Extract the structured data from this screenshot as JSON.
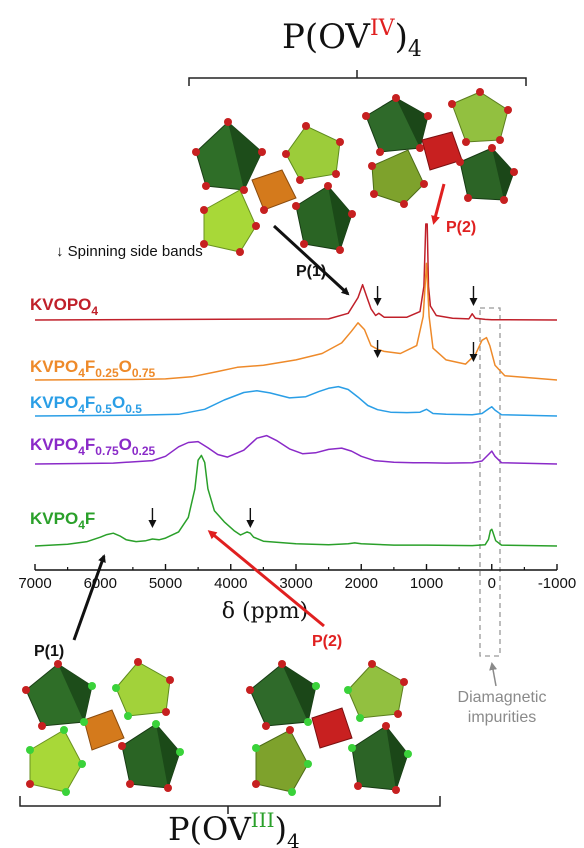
{
  "chart_data": {
    "type": "line",
    "xlabel": "δ (ppm)",
    "xlim": [
      7000,
      -1000
    ],
    "xticks": [
      7000,
      6000,
      5000,
      4000,
      3000,
      2000,
      1000,
      0,
      -1000
    ],
    "series": [
      {
        "name": "KVOPO4",
        "color": "#c0202a",
        "x": [
          7000,
          2500,
          2200,
          2050,
          1980,
          1900,
          1850,
          1780,
          1730,
          1650,
          1300,
          1100,
          1040,
          1010,
          990,
          970,
          940,
          850,
          600,
          350,
          300,
          250,
          100,
          0,
          -1000
        ],
        "y": [
          0,
          0.2,
          1.2,
          4.0,
          6.3,
          3.6,
          2.0,
          0.8,
          1.2,
          0.5,
          0.5,
          1.5,
          6,
          60,
          60,
          6,
          2.5,
          0.8,
          0.3,
          0.2,
          1.1,
          0.3,
          0.1,
          0.05,
          0
        ]
      },
      {
        "name": "KVPO4F0.25O0.75",
        "color": "#ee8a2a",
        "x": [
          7000,
          5500,
          5000,
          4600,
          4200,
          3900,
          3500,
          3000,
          2600,
          2300,
          2150,
          2050,
          1950,
          1850,
          1750,
          1650,
          1400,
          1150,
          1050,
          1000,
          960,
          900,
          700,
          400,
          250,
          150,
          80,
          30,
          -50,
          -200,
          -1000
        ],
        "y": [
          0,
          0.1,
          0.2,
          0.6,
          1.6,
          2.4,
          2.8,
          3.8,
          5.0,
          7.0,
          9.2,
          10.8,
          9.5,
          6.5,
          5.8,
          5.4,
          5.0,
          6.5,
          12,
          22,
          12,
          6,
          3.8,
          3.0,
          4.8,
          7.5,
          8.0,
          6.5,
          2.8,
          0.8,
          0
        ]
      },
      {
        "name": "KVPO4F0.5O0.5",
        "color": "#2a9ee6",
        "x": [
          7000,
          5500,
          4800,
          4400,
          4100,
          3800,
          3600,
          3400,
          3100,
          2850,
          2650,
          2500,
          2350,
          2200,
          2050,
          1900,
          1750,
          1550,
          1300,
          1100,
          1000,
          900,
          700,
          300,
          150,
          50,
          0,
          -50,
          -150,
          -1000
        ],
        "y": [
          0,
          0.2,
          0.4,
          1.6,
          3.8,
          5.6,
          6.0,
          5.5,
          4.3,
          4.6,
          5.8,
          6.6,
          7.0,
          6.3,
          4.5,
          2.5,
          1.5,
          0.9,
          0.8,
          0.9,
          1.6,
          0.6,
          0.4,
          0.3,
          0.6,
          1.7,
          2.2,
          1.4,
          0.3,
          0
        ]
      },
      {
        "name": "KVPO4F0.75O0.25",
        "color": "#8a2ac8",
        "x": [
          7000,
          5800,
          5200,
          5000,
          4800,
          4650,
          4500,
          4350,
          4200,
          4050,
          3800,
          3600,
          3450,
          3300,
          3100,
          2900,
          2700,
          2500,
          2300,
          2150,
          2000,
          1800,
          1500,
          1200,
          1000,
          700,
          300,
          150,
          50,
          0,
          -50,
          -150,
          -1000
        ],
        "y": [
          0,
          0.2,
          0.8,
          1.8,
          4.0,
          5.0,
          5.2,
          3.8,
          2.2,
          1.6,
          3.2,
          6.0,
          6.6,
          5.5,
          3.5,
          2.4,
          2.6,
          3.4,
          3.7,
          3.0,
          1.8,
          0.8,
          0.4,
          0.3,
          0.3,
          0.2,
          0.3,
          0.7,
          2.2,
          3.0,
          1.8,
          0.3,
          0
        ]
      },
      {
        "name": "KVPO4F",
        "color": "#2aa02a",
        "x": [
          7000,
          6500,
          6200,
          6000,
          5900,
          5800,
          5700,
          5600,
          5450,
          5300,
          5200,
          5100,
          5000,
          4800,
          4650,
          4550,
          4500,
          4450,
          4400,
          4350,
          4250,
          4100,
          3950,
          3850,
          3750,
          3700,
          3650,
          3500,
          3000,
          2500,
          2200,
          2100,
          2000,
          1500,
          1000,
          300,
          100,
          50,
          20,
          0,
          -20,
          -60,
          -150,
          -1000
        ],
        "y": [
          0,
          0.4,
          1.0,
          2.0,
          2.6,
          2.9,
          2.3,
          1.4,
          1.0,
          1.2,
          1.6,
          1.4,
          1.8,
          3.2,
          6.5,
          13,
          19.5,
          20.6,
          19,
          13,
          8,
          5.5,
          3.5,
          2.5,
          3.2,
          2.9,
          2.0,
          1.1,
          0.5,
          0.3,
          0.5,
          0.7,
          0.5,
          0.2,
          0.2,
          0.1,
          0.3,
          1.5,
          3.5,
          3.8,
          3.0,
          1.2,
          0.2,
          0
        ]
      }
    ],
    "annotations": {
      "top_formula": {
        "base": "P(OV",
        "roman": "IV",
        "sub": "4"
      },
      "bottom_formula": {
        "base": "P(OV",
        "roman": "III",
        "sub": "4"
      },
      "side_bands": "↓ Spinning side bands",
      "p1": "P(1)",
      "p2": "P(2)",
      "impurities": [
        "Diamagnetic",
        "impurities"
      ]
    },
    "legend_labels": [
      {
        "base": "KVOPO",
        "s1": "4",
        "mid1": "",
        "s2": "",
        "mid2": "",
        "s3": "",
        "color": "#c0202a"
      },
      {
        "base": "KVPO",
        "s1": "4",
        "mid1": "F",
        "s2": "0.25",
        "mid2": "O",
        "s3": "0.75",
        "color": "#ee8a2a"
      },
      {
        "base": "KVPO",
        "s1": "4",
        "mid1": "F",
        "s2": "0.5",
        "mid2": "O",
        "s3": "0.5",
        "color": "#2a9ee6"
      },
      {
        "base": "KVPO",
        "s1": "4",
        "mid1": "F",
        "s2": "0.75",
        "mid2": "O",
        "s3": "0.25",
        "color": "#8a2ac8"
      },
      {
        "base": "KVPO",
        "s1": "4",
        "mid1": "F",
        "s2": "",
        "mid2": "",
        "s3": "",
        "color": "#2aa02a"
      }
    ],
    "grid": false
  }
}
